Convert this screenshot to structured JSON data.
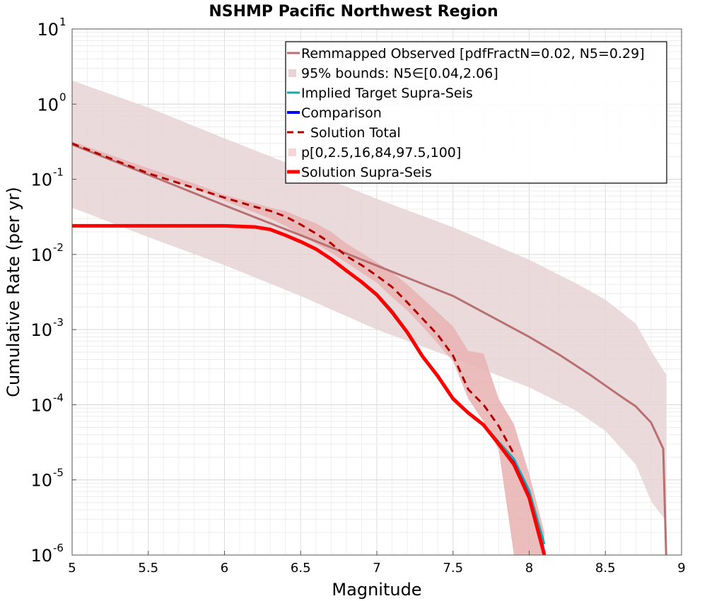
{
  "chart_data": {
    "type": "line",
    "title": "NSHMP Pacific Northwest Region",
    "xlabel": "Magnitude",
    "ylabel": "Cumulative Rate (per yr)",
    "xlim": [
      5,
      9
    ],
    "ylim": [
      1e-06,
      10
    ],
    "yscale": "log",
    "grid": true,
    "legend_position": "top-right",
    "x_ticks": [
      "5",
      "5.5",
      "6",
      "6.5",
      "7",
      "7.5",
      "8",
      "8.5",
      "9"
    ],
    "y_ticks": [
      {
        "base": "10",
        "exp": "1",
        "value": 10
      },
      {
        "base": "10",
        "exp": "0",
        "value": 1
      },
      {
        "base": "10",
        "exp": "-1",
        "value": 0.1
      },
      {
        "base": "10",
        "exp": "-2",
        "value": 0.01
      },
      {
        "base": "10",
        "exp": "-3",
        "value": 0.001
      },
      {
        "base": "10",
        "exp": "-4",
        "value": 0.0001
      },
      {
        "base": "10",
        "exp": "-5",
        "value": 1e-05
      },
      {
        "base": "10",
        "exp": "-6",
        "value": 1e-06
      }
    ],
    "bands": [
      {
        "name": "95% bounds: N5∈[0.04,2.06]",
        "color": "#e8d4d6",
        "x": [
          5,
          5.5,
          6,
          6.5,
          7,
          7.5,
          8,
          8.3,
          8.5,
          8.7,
          8.8,
          8.9
        ],
        "lower": [
          0.042,
          0.017,
          0.0072,
          0.0028,
          0.001,
          0.00042,
          0.00017,
          8.5e-05,
          4.5e-05,
          1.6e-05,
          5.2e-06,
          2.8e-06
        ],
        "upper": [
          2.06,
          0.9,
          0.35,
          0.14,
          0.055,
          0.023,
          0.0085,
          0.0042,
          0.0025,
          0.0012,
          0.00052,
          0.00025
        ]
      },
      {
        "name": "p[0,2.5,16,84,97.5,100]",
        "color": "#e9b2b2",
        "x": [
          5,
          5.2,
          5.5,
          5.8,
          6,
          6.2,
          6.3,
          6.4,
          6.5,
          6.6,
          6.7,
          6.8,
          6.9,
          7,
          7.1,
          7.2,
          7.3,
          7.4,
          7.5,
          7.6,
          7.7,
          7.8,
          7.9,
          8,
          8.1
        ],
        "lower": [
          0.28,
          0.2,
          0.12,
          0.076,
          0.052,
          0.036,
          0.03,
          0.024,
          0.018,
          0.014,
          0.0105,
          0.0078,
          0.0057,
          0.0042,
          0.0027,
          0.0018,
          0.0011,
          0.00065,
          0.00038,
          0.00012,
          6e-05,
          2.5e-05,
          1e-06,
          1e-06,
          1e-06
        ],
        "upper": [
          0.32,
          0.23,
          0.14,
          0.088,
          0.062,
          0.048,
          0.042,
          0.038,
          0.031,
          0.026,
          0.02,
          0.014,
          0.0105,
          0.0078,
          0.0058,
          0.004,
          0.0026,
          0.0017,
          0.0011,
          0.00052,
          0.00048,
          0.00012,
          5.5e-05,
          1.2e-05,
          2e-06
        ]
      }
    ],
    "series": [
      {
        "name": "Remmapped Observed [pdfFractN=0.02, N5=0.29]",
        "color": "#b87070",
        "width": 3,
        "dash": "",
        "x": [
          5,
          5.5,
          6,
          6.5,
          7,
          7.5,
          8,
          8.2,
          8.4,
          8.5,
          8.6,
          8.7,
          8.8,
          8.88,
          8.9
        ],
        "y": [
          0.29,
          0.115,
          0.045,
          0.018,
          0.0071,
          0.0028,
          0.0008,
          0.00046,
          0.00025,
          0.00018,
          0.00013,
          9.5e-05,
          5.8e-05,
          2.6e-05,
          8e-07
        ]
      },
      {
        "name": "Implied Target Supra-Seis",
        "color": "#1aa9a9",
        "width": 3,
        "dash": "",
        "x": [
          5,
          5.5,
          6,
          6.2,
          6.3,
          6.4,
          6.5,
          6.6,
          6.7,
          6.8,
          6.9,
          7,
          7.1,
          7.2,
          7.3,
          7.4,
          7.5,
          7.6,
          7.7,
          7.8,
          7.9,
          8,
          8.1
        ],
        "y": [
          0.024,
          0.024,
          0.024,
          0.0232,
          0.0215,
          0.018,
          0.015,
          0.012,
          0.0088,
          0.0062,
          0.0044,
          0.003,
          0.0018,
          0.00095,
          0.00045,
          0.00025,
          0.000125,
          7.9e-05,
          5.5e-05,
          3.2e-05,
          1.9e-05,
          7.2e-06,
          1.4e-06
        ]
      },
      {
        "name": "Comparison",
        "color": "#0000ff",
        "width": 3,
        "dash": "",
        "x": [
          5,
          5.5,
          6,
          6.2,
          6.3,
          6.4,
          6.5,
          6.6,
          6.7,
          6.8,
          6.9,
          7,
          7.1,
          7.2,
          7.3,
          7.4,
          7.5,
          7.6,
          7.7,
          7.8,
          7.9,
          8,
          8.1
        ],
        "y": [
          0.024,
          0.024,
          0.024,
          0.0232,
          0.0215,
          0.018,
          0.0148,
          0.0118,
          0.0087,
          0.0061,
          0.0043,
          0.0029,
          0.0017,
          0.00092,
          0.00044,
          0.00024,
          0.00012,
          7.8e-05,
          5.4e-05,
          3e-05,
          1.7e-05,
          6.2e-06,
          1.1e-06
        ]
      },
      {
        "name": "Solution Total",
        "color": "#b20000",
        "width": 3,
        "dash": "10,7",
        "x": [
          5,
          5.5,
          6,
          6.2,
          6.3,
          6.4,
          6.5,
          6.6,
          6.7,
          6.8,
          6.9,
          7,
          7.1,
          7.2,
          7.3,
          7.4,
          7.5,
          7.6,
          7.7,
          7.8,
          7.9
        ],
        "y": [
          0.3,
          0.12,
          0.057,
          0.043,
          0.038,
          0.032,
          0.025,
          0.019,
          0.014,
          0.0095,
          0.0072,
          0.0052,
          0.0037,
          0.0023,
          0.0014,
          0.00085,
          0.00045,
          0.00016,
          0.0001,
          5.2e-05,
          2.2e-05
        ]
      },
      {
        "name": "Solution Supra-Seis",
        "color": "#ff0000",
        "width": 5,
        "dash": "",
        "x": [
          5,
          5.5,
          6,
          6.2,
          6.3,
          6.4,
          6.5,
          6.6,
          6.7,
          6.8,
          6.9,
          7,
          7.1,
          7.2,
          7.3,
          7.4,
          7.5,
          7.6,
          7.7,
          7.8,
          7.9,
          8,
          8.1
        ],
        "y": [
          0.024,
          0.024,
          0.024,
          0.0232,
          0.0215,
          0.018,
          0.0148,
          0.0118,
          0.0087,
          0.0061,
          0.0043,
          0.0029,
          0.0017,
          0.00092,
          0.00044,
          0.00024,
          0.00012,
          7.8e-05,
          5.4e-05,
          3e-05,
          1.6e-05,
          5.8e-06,
          1e-06
        ]
      }
    ],
    "legend": [
      {
        "label": "Remmapped Observed [pdfFractN=0.02, N5=0.29]",
        "kind": "line",
        "color": "#b87070",
        "dash": "",
        "width": 3
      },
      {
        "label": "95% bounds: N5∈[0.04,2.06]",
        "kind": "box",
        "color": "#e8d4d6",
        "dash": "",
        "width": 0
      },
      {
        "label": "Implied Target Supra-Seis",
        "kind": "line",
        "color": "#1aa9a9",
        "dash": "",
        "width": 3
      },
      {
        "label": "Comparison",
        "kind": "line",
        "color": "#0000ff",
        "dash": "",
        "width": 4
      },
      {
        "label": "Solution Total",
        "kind": "line",
        "color": "#b20000",
        "dash": "10,7",
        "width": 3
      },
      {
        "label": "p[0,2.5,16,84,97.5,100]",
        "kind": "box",
        "color": "#f5d6d6",
        "dash": "",
        "width": 0
      },
      {
        "label": "Solution Supra-Seis",
        "kind": "line",
        "color": "#ff0000",
        "dash": "",
        "width": 5
      }
    ]
  }
}
